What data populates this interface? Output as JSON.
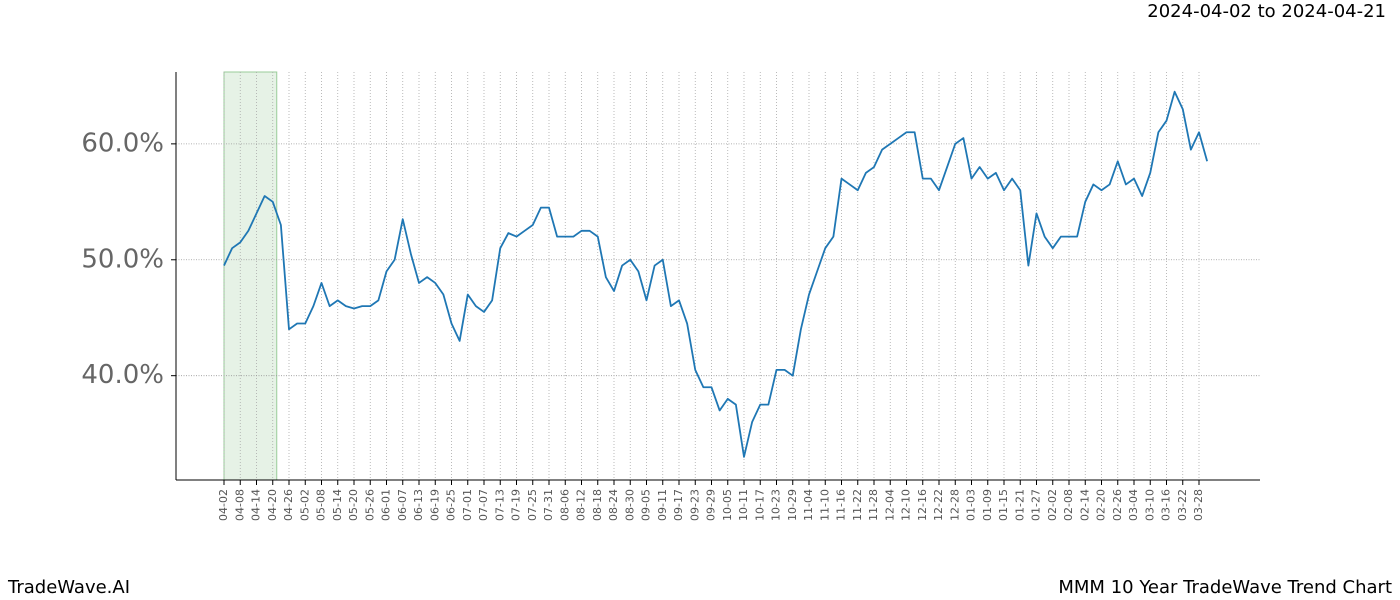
{
  "chart_data": {
    "type": "line",
    "title": "MMM 10 Year TradeWave Trend Chart",
    "brand": "TradeWave.AI",
    "range_label": "2024-04-02 to 2024-04-21",
    "highlight": [
      "04-02",
      "04-20"
    ],
    "highlight_color": "#e6f2e6",
    "categories": [
      "04-02",
      null,
      "04-08",
      null,
      "04-14",
      null,
      "04-20",
      null,
      "04-26",
      null,
      "05-02",
      null,
      "05-08",
      null,
      "05-14",
      null,
      "05-20",
      null,
      "05-26",
      null,
      "06-01",
      null,
      "06-07",
      null,
      "06-13",
      null,
      "06-19",
      null,
      "06-25",
      null,
      "07-01",
      null,
      "07-07",
      null,
      "07-13",
      null,
      "07-19",
      null,
      "07-25",
      null,
      "07-31",
      null,
      "08-06",
      null,
      "08-12",
      null,
      "08-18",
      null,
      "08-24",
      null,
      "08-30",
      null,
      "09-05",
      null,
      "09-11",
      null,
      "09-17",
      null,
      "09-23",
      null,
      "09-29",
      null,
      "10-05",
      null,
      "10-11",
      null,
      "10-17",
      null,
      "10-23",
      null,
      "10-29",
      null,
      "11-04",
      null,
      "11-10",
      null,
      "11-16",
      null,
      "11-22",
      null,
      "11-28",
      null,
      "12-04",
      null,
      "12-10",
      null,
      "12-16",
      null,
      "12-22",
      null,
      "12-28",
      null,
      "01-03",
      null,
      "01-09",
      null,
      "01-15",
      null,
      "01-21",
      null,
      "01-27",
      null,
      "02-02",
      null,
      "02-08",
      null,
      "02-14",
      null,
      "02-20",
      null,
      "02-26",
      null,
      "03-04",
      null,
      "03-10",
      null,
      "03-16",
      null,
      "03-22",
      null,
      "03-28",
      null
    ],
    "series": [
      {
        "name": "MMM",
        "color": "#1f77b4",
        "values": [
          49.5,
          51,
          51.5,
          52.5,
          54,
          55.5,
          55,
          53,
          44,
          44.5,
          44.5,
          46,
          48,
          46,
          46.5,
          46,
          45.8,
          46,
          46,
          46.5,
          49,
          50,
          53.5,
          50.5,
          48,
          48.5,
          48,
          47,
          44.5,
          43,
          47,
          46,
          45.5,
          46.5,
          51,
          52.3,
          52,
          52.5,
          53,
          54.5,
          54.5,
          52,
          52,
          52,
          52.5,
          52.5,
          52,
          48.5,
          47.3,
          49.5,
          50,
          49,
          46.5,
          49.5,
          50,
          46,
          46.5,
          44.5,
          40.5,
          39,
          39,
          37,
          38,
          37.5,
          33,
          36,
          37.5,
          37.5,
          40.5,
          40.5,
          40,
          44,
          47,
          49,
          51,
          52,
          57,
          56.5,
          56,
          57.5,
          58,
          59.5,
          60,
          60.5,
          61,
          61,
          57,
          57,
          56,
          58,
          60,
          60.5,
          57,
          58,
          57,
          57.5,
          56,
          57,
          56,
          49.5,
          54,
          52,
          51,
          52,
          52,
          52,
          55,
          56.5,
          56,
          56.5,
          58.5,
          56.5,
          57,
          55.5,
          57.5,
          61,
          62,
          64.5,
          63,
          59.5,
          61,
          58.5
        ]
      }
    ],
    "ylim": [
      31,
      66.2
    ],
    "yticks": [
      {
        "value": 40,
        "label": "40.0%"
      },
      {
        "value": 50,
        "label": "50.0%"
      },
      {
        "value": 60,
        "label": "60.0%"
      }
    ],
    "grid": true
  }
}
